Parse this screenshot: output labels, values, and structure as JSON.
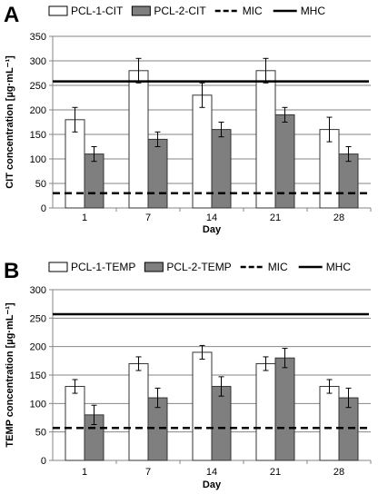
{
  "chart_data": [
    {
      "panel": "A",
      "type": "bar",
      "categories": [
        "1",
        "7",
        "14",
        "21",
        "28"
      ],
      "xlabel": "Day",
      "ylabel": "CIT concentration [µg·mL⁻¹]",
      "ylim": [
        0,
        350
      ],
      "yticks": [
        0,
        50,
        100,
        150,
        200,
        250,
        300,
        350
      ],
      "grid": true,
      "legend_position": "top",
      "series": [
        {
          "name": "PCL-1-CIT",
          "color": "#ffffff",
          "values": [
            180,
            280,
            230,
            280,
            160
          ],
          "errors": [
            25,
            25,
            25,
            25,
            25
          ]
        },
        {
          "name": "PCL-2-CIT",
          "color": "#7f7f7f",
          "values": [
            110,
            140,
            160,
            190,
            110
          ],
          "errors": [
            15,
            15,
            15,
            15,
            15
          ]
        }
      ],
      "lines": [
        {
          "name": "MIC",
          "style": "dashed",
          "value": 30
        },
        {
          "name": "MHC",
          "style": "solid",
          "value": 258
        }
      ]
    },
    {
      "panel": "B",
      "type": "bar",
      "categories": [
        "1",
        "7",
        "14",
        "21",
        "28"
      ],
      "xlabel": "Day",
      "ylabel": "TEMP concentration [µg·mL⁻¹]",
      "ylim": [
        0,
        300
      ],
      "yticks": [
        0,
        50,
        100,
        150,
        200,
        250,
        300
      ],
      "grid": true,
      "legend_position": "top",
      "series": [
        {
          "name": "PCL-1-TEMP",
          "color": "#ffffff",
          "values": [
            130,
            170,
            190,
            170,
            130
          ],
          "errors": [
            12,
            12,
            12,
            12,
            12
          ]
        },
        {
          "name": "PCL-2-TEMP",
          "color": "#7f7f7f",
          "values": [
            80,
            110,
            130,
            180,
            110
          ],
          "errors": [
            17,
            17,
            17,
            17,
            17
          ]
        }
      ],
      "lines": [
        {
          "name": "MIC",
          "style": "dashed",
          "value": 57
        },
        {
          "name": "MHC",
          "style": "solid",
          "value": 257
        }
      ]
    }
  ]
}
